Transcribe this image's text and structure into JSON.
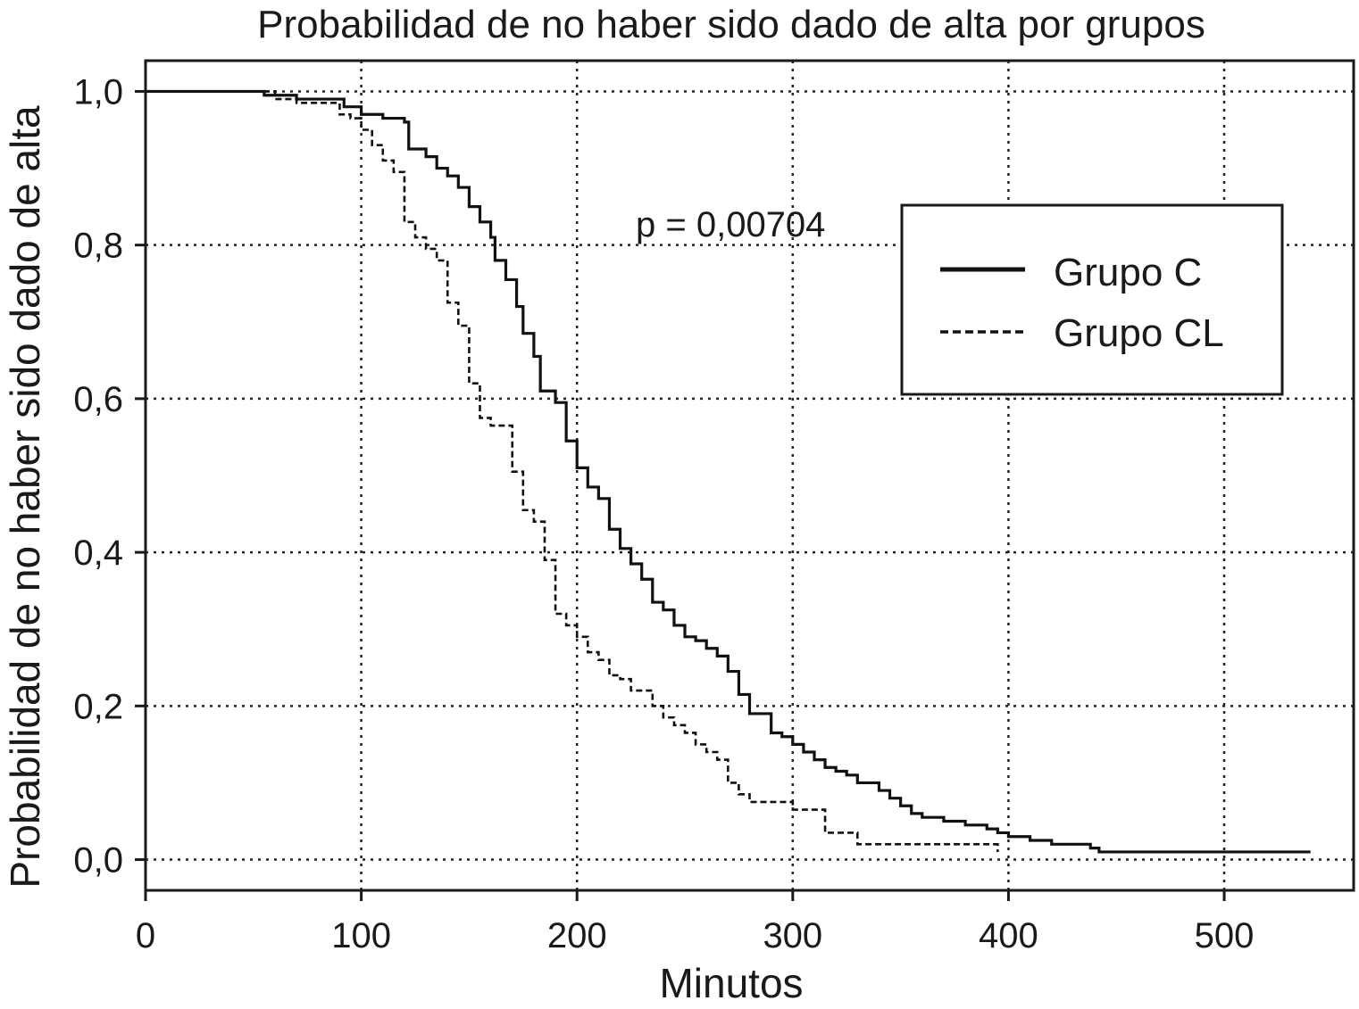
{
  "chart_data": {
    "type": "line",
    "subtype": "step",
    "title": "Probabilidad de no haber sido dado de alta por grupos",
    "xlabel": "Minutos",
    "ylabel": "Probabilidad de no haber sido dado de alta",
    "xlim": [
      0,
      560
    ],
    "ylim": [
      -0.04,
      1.04
    ],
    "xticks": [
      0,
      100,
      200,
      300,
      400,
      500
    ],
    "xtick_labels": [
      "0",
      "100",
      "200",
      "300",
      "400",
      "500"
    ],
    "yticks": [
      0,
      0.2,
      0.4,
      0.6,
      0.8,
      1.0
    ],
    "ytick_labels": [
      "0,0",
      "0,2",
      "0,4",
      "0,6",
      "0,8",
      "1,0"
    ],
    "grid": true,
    "legend_position": "upper-right",
    "annotation": "p = 0,00704",
    "series": [
      {
        "name": "Grupo C",
        "line_style": "solid",
        "x": [
          0,
          55,
          70,
          92,
          100,
          110,
          120,
          122,
          130,
          135,
          140,
          145,
          150,
          155,
          160,
          162,
          167,
          172,
          175,
          180,
          183,
          190,
          195,
          200,
          205,
          210,
          215,
          220,
          225,
          230,
          235,
          240,
          245,
          250,
          255,
          260,
          265,
          270,
          275,
          280,
          290,
          295,
          300,
          305,
          310,
          315,
          320,
          325,
          330,
          340,
          345,
          350,
          355,
          360,
          370,
          380,
          390,
          395,
          400,
          410,
          420,
          438,
          442,
          540
        ],
        "y": [
          1.0,
          0.995,
          0.99,
          0.98,
          0.97,
          0.965,
          0.96,
          0.925,
          0.915,
          0.9,
          0.89,
          0.875,
          0.85,
          0.83,
          0.81,
          0.78,
          0.755,
          0.72,
          0.685,
          0.655,
          0.61,
          0.595,
          0.545,
          0.51,
          0.485,
          0.47,
          0.43,
          0.405,
          0.385,
          0.365,
          0.335,
          0.325,
          0.305,
          0.29,
          0.285,
          0.275,
          0.265,
          0.245,
          0.215,
          0.19,
          0.165,
          0.16,
          0.15,
          0.14,
          0.13,
          0.12,
          0.115,
          0.11,
          0.1,
          0.09,
          0.08,
          0.07,
          0.06,
          0.055,
          0.05,
          0.045,
          0.04,
          0.035,
          0.03,
          0.025,
          0.02,
          0.015,
          0.01,
          0.01
        ]
      },
      {
        "name": "Grupo CL",
        "line_style": "dashed",
        "x": [
          0,
          60,
          70,
          90,
          95,
          100,
          105,
          110,
          115,
          120,
          125,
          130,
          135,
          140,
          145,
          150,
          155,
          160,
          170,
          175,
          180,
          185,
          190,
          195,
          200,
          205,
          210,
          215,
          220,
          225,
          235,
          240,
          245,
          250,
          255,
          260,
          265,
          270,
          275,
          280,
          300,
          315,
          330,
          395
        ],
        "y": [
          1.0,
          0.99,
          0.985,
          0.97,
          0.965,
          0.95,
          0.93,
          0.91,
          0.895,
          0.83,
          0.81,
          0.795,
          0.78,
          0.725,
          0.695,
          0.62,
          0.575,
          0.565,
          0.505,
          0.455,
          0.44,
          0.39,
          0.32,
          0.305,
          0.29,
          0.27,
          0.26,
          0.24,
          0.235,
          0.22,
          0.2,
          0.185,
          0.175,
          0.165,
          0.15,
          0.14,
          0.13,
          0.1,
          0.085,
          0.075,
          0.065,
          0.035,
          0.02,
          0.01
        ]
      }
    ]
  }
}
